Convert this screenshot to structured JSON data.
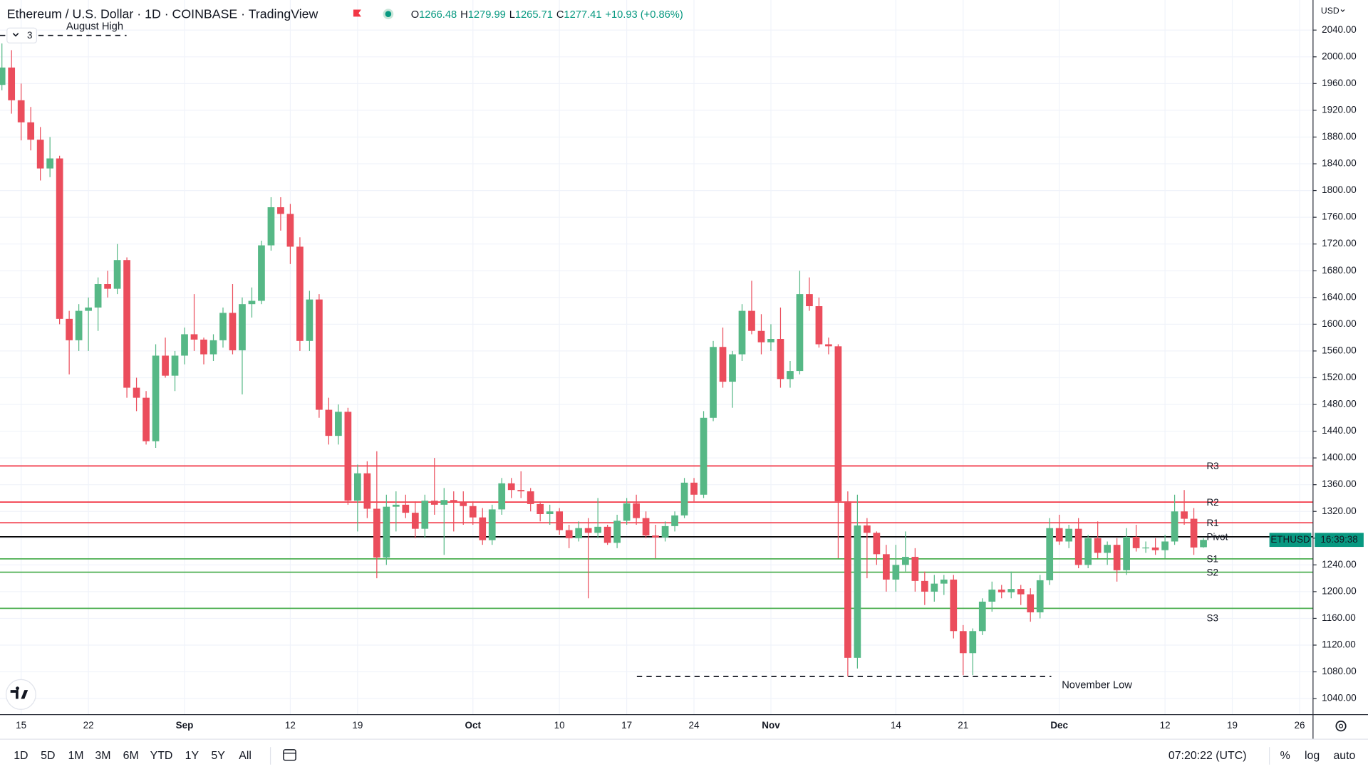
{
  "header": {
    "title": "Ethereum / U.S. Dollar · 1D · COINBASE · TradingView",
    "ohlc_labels": [
      "O",
      "H",
      "L",
      "C"
    ],
    "change": "+10.93 (+0.86%)",
    "legend_toggle": "3",
    "currency": "USD"
  },
  "chart_data": {
    "type": "candlestick",
    "up_color": "#56b886",
    "down_color": "#eb4d5c",
    "candles": [
      [
        1958,
        2020,
        1950,
        1984
      ],
      [
        1984,
        2010,
        1915,
        1935
      ],
      [
        1935,
        1960,
        1875,
        1902
      ],
      [
        1902,
        1925,
        1860,
        1876
      ],
      [
        1876,
        1895,
        1815,
        1833
      ],
      [
        1833,
        1880,
        1820,
        1848
      ],
      [
        1848,
        1852,
        1600,
        1608
      ],
      [
        1608,
        1620,
        1525,
        1576
      ],
      [
        1576,
        1630,
        1560,
        1620
      ],
      [
        1620,
        1640,
        1560,
        1625
      ],
      [
        1625,
        1670,
        1590,
        1660
      ],
      [
        1660,
        1680,
        1640,
        1653
      ],
      [
        1653,
        1720,
        1645,
        1696
      ],
      [
        1696,
        1700,
        1490,
        1505
      ],
      [
        1505,
        1520,
        1470,
        1490
      ],
      [
        1490,
        1500,
        1420,
        1425
      ],
      [
        1425,
        1570,
        1415,
        1553
      ],
      [
        1553,
        1580,
        1520,
        1523
      ],
      [
        1523,
        1560,
        1500,
        1553
      ],
      [
        1553,
        1595,
        1540,
        1585
      ],
      [
        1585,
        1645,
        1560,
        1577
      ],
      [
        1577,
        1580,
        1540,
        1555
      ],
      [
        1555,
        1585,
        1545,
        1576
      ],
      [
        1576,
        1625,
        1565,
        1617
      ],
      [
        1617,
        1660,
        1555,
        1561
      ],
      [
        1561,
        1640,
        1495,
        1630
      ],
      [
        1630,
        1655,
        1610,
        1635
      ],
      [
        1635,
        1725,
        1630,
        1718
      ],
      [
        1718,
        1790,
        1710,
        1775
      ],
      [
        1775,
        1790,
        1740,
        1765
      ],
      [
        1765,
        1780,
        1690,
        1716
      ],
      [
        1716,
        1730,
        1560,
        1575
      ],
      [
        1575,
        1650,
        1560,
        1637
      ],
      [
        1637,
        1645,
        1460,
        1472
      ],
      [
        1472,
        1490,
        1420,
        1433
      ],
      [
        1433,
        1480,
        1420,
        1469
      ],
      [
        1469,
        1475,
        1330,
        1336
      ],
      [
        1336,
        1390,
        1290,
        1377
      ],
      [
        1377,
        1395,
        1310,
        1324
      ],
      [
        1324,
        1410,
        1220,
        1251
      ],
      [
        1251,
        1345,
        1240,
        1327
      ],
      [
        1327,
        1350,
        1290,
        1330
      ],
      [
        1330,
        1345,
        1310,
        1318
      ],
      [
        1318,
        1335,
        1280,
        1294
      ],
      [
        1294,
        1345,
        1280,
        1336
      ],
      [
        1336,
        1400,
        1315,
        1330
      ],
      [
        1330,
        1355,
        1255,
        1337
      ],
      [
        1337,
        1350,
        1290,
        1334
      ],
      [
        1334,
        1350,
        1300,
        1328
      ],
      [
        1328,
        1335,
        1300,
        1311
      ],
      [
        1311,
        1325,
        1270,
        1277
      ],
      [
        1277,
        1330,
        1270,
        1323
      ],
      [
        1323,
        1370,
        1315,
        1362
      ],
      [
        1362,
        1370,
        1340,
        1352
      ],
      [
        1352,
        1380,
        1340,
        1350
      ],
      [
        1350,
        1355,
        1320,
        1331
      ],
      [
        1331,
        1335,
        1305,
        1316
      ],
      [
        1316,
        1330,
        1300,
        1320
      ],
      [
        1320,
        1325,
        1285,
        1292
      ],
      [
        1292,
        1300,
        1265,
        1280
      ],
      [
        1280,
        1305,
        1275,
        1295
      ],
      [
        1295,
        1310,
        1190,
        1288
      ],
      [
        1288,
        1340,
        1280,
        1297
      ],
      [
        1297,
        1300,
        1270,
        1273
      ],
      [
        1273,
        1315,
        1265,
        1306
      ],
      [
        1306,
        1340,
        1300,
        1332
      ],
      [
        1332,
        1345,
        1300,
        1310
      ],
      [
        1310,
        1320,
        1280,
        1284
      ],
      [
        1284,
        1300,
        1250,
        1281
      ],
      [
        1281,
        1305,
        1275,
        1298
      ],
      [
        1298,
        1320,
        1290,
        1314
      ],
      [
        1314,
        1370,
        1310,
        1363
      ],
      [
        1363,
        1370,
        1335,
        1345
      ],
      [
        1345,
        1470,
        1340,
        1460
      ],
      [
        1460,
        1575,
        1455,
        1566
      ],
      [
        1566,
        1595,
        1505,
        1514
      ],
      [
        1514,
        1560,
        1475,
        1555
      ],
      [
        1555,
        1630,
        1545,
        1620
      ],
      [
        1620,
        1665,
        1585,
        1590
      ],
      [
        1590,
        1615,
        1555,
        1573
      ],
      [
        1573,
        1600,
        1560,
        1578
      ],
      [
        1578,
        1625,
        1505,
        1518
      ],
      [
        1518,
        1545,
        1505,
        1530
      ],
      [
        1530,
        1680,
        1525,
        1645
      ],
      [
        1645,
        1670,
        1620,
        1627
      ],
      [
        1627,
        1640,
        1565,
        1570
      ],
      [
        1570,
        1580,
        1555,
        1567
      ],
      [
        1567,
        1570,
        1250,
        1335
      ],
      [
        1335,
        1350,
        1073,
        1101
      ],
      [
        1101,
        1345,
        1085,
        1299
      ],
      [
        1299,
        1310,
        1220,
        1288
      ],
      [
        1288,
        1290,
        1240,
        1256
      ],
      [
        1256,
        1270,
        1200,
        1218
      ],
      [
        1218,
        1270,
        1200,
        1240
      ],
      [
        1240,
        1290,
        1230,
        1252
      ],
      [
        1252,
        1265,
        1200,
        1216
      ],
      [
        1216,
        1230,
        1180,
        1200
      ],
      [
        1200,
        1225,
        1185,
        1212
      ],
      [
        1212,
        1225,
        1195,
        1218
      ],
      [
        1218,
        1225,
        1130,
        1141
      ],
      [
        1141,
        1150,
        1075,
        1108
      ],
      [
        1108,
        1145,
        1075,
        1141
      ],
      [
        1141,
        1190,
        1135,
        1185
      ],
      [
        1185,
        1215,
        1170,
        1203
      ],
      [
        1203,
        1210,
        1190,
        1199
      ],
      [
        1199,
        1230,
        1190,
        1204
      ],
      [
        1204,
        1210,
        1180,
        1196
      ],
      [
        1196,
        1205,
        1155,
        1169
      ],
      [
        1169,
        1225,
        1160,
        1217
      ],
      [
        1217,
        1310,
        1210,
        1295
      ],
      [
        1295,
        1315,
        1270,
        1275
      ],
      [
        1275,
        1300,
        1265,
        1294
      ],
      [
        1294,
        1310,
        1235,
        1240
      ],
      [
        1240,
        1285,
        1235,
        1280
      ],
      [
        1280,
        1305,
        1250,
        1258
      ],
      [
        1258,
        1275,
        1240,
        1270
      ],
      [
        1270,
        1280,
        1215,
        1232
      ],
      [
        1232,
        1295,
        1225,
        1282
      ],
      [
        1282,
        1300,
        1260,
        1265
      ],
      [
        1265,
        1275,
        1258,
        1266
      ],
      [
        1266,
        1280,
        1255,
        1262
      ],
      [
        1262,
        1285,
        1250,
        1275
      ],
      [
        1275,
        1345,
        1270,
        1320
      ],
      [
        1320,
        1352,
        1300,
        1309
      ],
      [
        1309,
        1325,
        1255,
        1266
      ],
      [
        1266.48,
        1279.99,
        1265.71,
        1277.41
      ]
    ],
    "xlim": [
      -0.2,
      136.4
    ],
    "xticks": [
      {
        "value": 2,
        "label": "15"
      },
      {
        "value": 9,
        "label": "22"
      },
      {
        "value": 19,
        "label": "Sep"
      },
      {
        "value": 30,
        "label": "12"
      },
      {
        "value": 37,
        "label": "19"
      },
      {
        "value": 49,
        "label": "Oct"
      },
      {
        "value": 58,
        "label": "10"
      },
      {
        "value": 65,
        "label": "17"
      },
      {
        "value": 72,
        "label": "24"
      },
      {
        "value": 80,
        "label": "Nov"
      },
      {
        "value": 93,
        "label": "14"
      },
      {
        "value": 100,
        "label": "21"
      },
      {
        "value": 110,
        "label": "Dec"
      },
      {
        "value": 121,
        "label": "12"
      },
      {
        "value": 128,
        "label": "19"
      },
      {
        "value": 135,
        "label": "26"
      }
    ],
    "ylim": [
      1016,
      2085
    ],
    "yticks": [
      {
        "value": 1040,
        "label": "1040.00"
      },
      {
        "value": 1080,
        "label": "1080.00"
      },
      {
        "value": 1120,
        "label": "1120.00"
      },
      {
        "value": 1160,
        "label": "1160.00"
      },
      {
        "value": 1200,
        "label": "1200.00"
      },
      {
        "value": 1240,
        "label": "1240.00"
      },
      {
        "value": 1280,
        "label": "1280.00"
      },
      {
        "value": 1320,
        "label": "1320.00"
      },
      {
        "value": 1360,
        "label": "1360.00"
      },
      {
        "value": 1400,
        "label": "1400.00"
      },
      {
        "value": 1440,
        "label": "1440.00"
      },
      {
        "value": 1480,
        "label": "1480.00"
      },
      {
        "value": 1520,
        "label": "1520.00"
      },
      {
        "value": 1560,
        "label": "1560.00"
      },
      {
        "value": 1600,
        "label": "1600.00"
      },
      {
        "value": 1640,
        "label": "1640.00"
      },
      {
        "value": 1680,
        "label": "1680.00"
      },
      {
        "value": 1720,
        "label": "1720.00"
      },
      {
        "value": 1760,
        "label": "1760.00"
      },
      {
        "value": 1800,
        "label": "1800.00"
      },
      {
        "value": 1840,
        "label": "1840.00"
      },
      {
        "value": 1880,
        "label": "1880.00"
      },
      {
        "value": 1920,
        "label": "1920.00"
      },
      {
        "value": 1960,
        "label": "1960.00"
      },
      {
        "value": 2000,
        "label": "2000.00"
      },
      {
        "value": 2040,
        "label": "2040.00"
      }
    ],
    "grid": true,
    "levels": [
      {
        "label": "R3",
        "value": 1388,
        "color": "#f23645"
      },
      {
        "label": "R2",
        "value": 1334,
        "color": "#f23645"
      },
      {
        "label": "R1",
        "value": 1303,
        "color": "#f23645"
      },
      {
        "label": "Pivot",
        "value": 1282,
        "color": "#000000"
      },
      {
        "label": "S1",
        "value": 1249,
        "color": "#4caf50"
      },
      {
        "label": "S2",
        "value": 1229,
        "color": "#4caf50"
      },
      {
        "label": "S3",
        "value": 1175,
        "color": "#4caf50"
      }
    ],
    "annotations": [
      {
        "text": "August High",
        "value": 2032
      },
      {
        "text": "November Low",
        "value": 1073
      }
    ],
    "symbol_label": "ETHUSD",
    "countdown": "16:39:38"
  },
  "toolbar": {
    "timeframes": [
      "1D",
      "5D",
      "1M",
      "3M",
      "6M",
      "YTD",
      "1Y",
      "5Y",
      "All"
    ],
    "clock": "07:20:22 (UTC)",
    "options": [
      "%",
      "log",
      "auto"
    ]
  }
}
